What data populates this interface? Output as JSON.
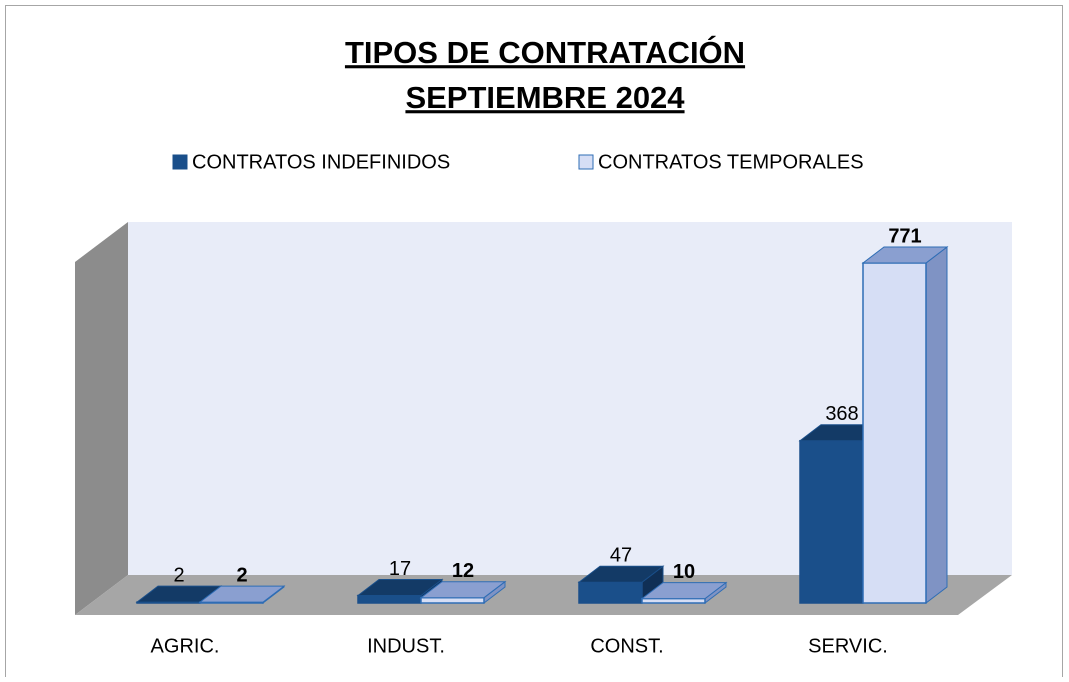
{
  "chart_data": {
    "type": "bar3d",
    "title": [
      "TIPOS DE CONTRATACIÓN",
      "SEPTIEMBRE 2024"
    ],
    "categories": [
      "AGRIC.",
      "INDUST.",
      "CONST.",
      "SERVIC."
    ],
    "series": [
      {
        "name": "CONTRATOS INDEFINIDOS",
        "color": "#1a4f8a",
        "values": [
          2,
          17,
          47,
          368
        ]
      },
      {
        "name": "CONTRATOS TEMPORALES",
        "color": "#d6def5",
        "values": [
          2,
          12,
          10,
          771
        ]
      }
    ],
    "legend": "top"
  }
}
